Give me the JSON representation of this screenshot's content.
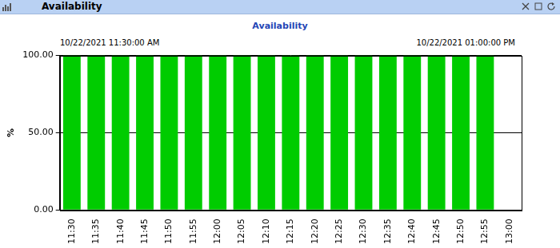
{
  "window": {
    "title": "Availability"
  },
  "chart_data": {
    "type": "bar",
    "title": "Availability",
    "annotations": [
      "10/22/2021 11:30:00 AM",
      "10/22/2021 01:00:00 PM"
    ],
    "y_label": "%",
    "categories": [
      "11:30",
      "11:35",
      "11:40",
      "11:45",
      "11:50",
      "11:55",
      "12:00",
      "12:05",
      "12:10",
      "12:15",
      "12:20",
      "12:25",
      "12:30",
      "12:35",
      "12:40",
      "12:45",
      "12:50",
      "12:55",
      "13:00"
    ],
    "values": [
      100,
      100,
      100,
      100,
      100,
      100,
      100,
      100,
      100,
      100,
      100,
      100,
      100,
      100,
      100,
      100,
      100,
      100,
      null
    ],
    "color": "#00cc00",
    "ylim": [
      0,
      100
    ],
    "yticks": [
      {
        "value": 0,
        "label": "0.00"
      },
      {
        "value": 50,
        "label": "50.00"
      },
      {
        "value": 100,
        "label": "100.00"
      }
    ],
    "grid": true
  }
}
